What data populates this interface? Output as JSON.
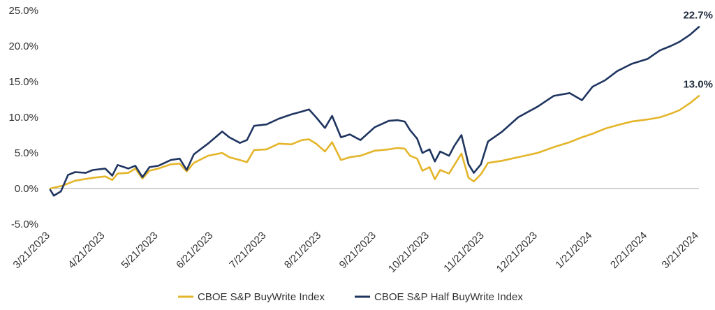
{
  "chart_data": {
    "type": "line",
    "title": "",
    "xlabel": "",
    "ylabel": "",
    "ylim": [
      -5.0,
      25.0
    ],
    "y_ticks": [
      "25.0%",
      "20.0%",
      "15.0%",
      "10.0%",
      "5.0%",
      "0.0%",
      "-5.0%"
    ],
    "x_ticks": [
      "3/21/2023",
      "4/21/2023",
      "5/21/2023",
      "6/21/2023",
      "7/21/2023",
      "8/21/2023",
      "9/21/2023",
      "10/21/2023",
      "11/21/2023",
      "12/21/2023",
      "1/21/2024",
      "2/21/2024",
      "3/21/2024"
    ],
    "grid": false,
    "legend_position": "bottom",
    "series": [
      {
        "name": "CBOE S&P BuyWrite Index",
        "color": "#e4b52a",
        "end_label": "13.0%",
        "points": [
          [
            "3/21/2023",
            0.0
          ],
          [
            "3/28/2023",
            0.4
          ],
          [
            "4/4/2023",
            1.1
          ],
          [
            "4/14/2023",
            1.5
          ],
          [
            "4/21/2023",
            1.7
          ],
          [
            "4/25/2023",
            1.2
          ],
          [
            "4/28/2023",
            2.1
          ],
          [
            "5/4/2023",
            2.2
          ],
          [
            "5/8/2023",
            2.8
          ],
          [
            "5/12/2023",
            1.4
          ],
          [
            "5/16/2023",
            2.5
          ],
          [
            "5/21/2023",
            2.8
          ],
          [
            "5/28/2023",
            3.4
          ],
          [
            "6/2/2023",
            3.5
          ],
          [
            "6/6/2023",
            2.4
          ],
          [
            "6/10/2023",
            3.6
          ],
          [
            "6/18/2023",
            4.6
          ],
          [
            "6/26/2023",
            5.0
          ],
          [
            "6/30/2023",
            4.4
          ],
          [
            "7/6/2023",
            4.0
          ],
          [
            "7/10/2023",
            3.7
          ],
          [
            "7/14/2023",
            5.4
          ],
          [
            "7/21/2023",
            5.5
          ],
          [
            "7/28/2023",
            6.3
          ],
          [
            "8/4/2023",
            6.2
          ],
          [
            "8/10/2023",
            6.8
          ],
          [
            "8/14/2023",
            6.9
          ],
          [
            "8/18/2023",
            6.3
          ],
          [
            "8/23/2023",
            5.2
          ],
          [
            "8/27/2023",
            6.5
          ],
          [
            "9/1/2023",
            4.0
          ],
          [
            "9/6/2023",
            4.4
          ],
          [
            "9/12/2023",
            4.6
          ],
          [
            "9/20/2023",
            5.3
          ],
          [
            "9/28/2023",
            5.5
          ],
          [
            "10/3/2023",
            5.7
          ],
          [
            "10/7/2023",
            5.6
          ],
          [
            "10/10/2023",
            4.6
          ],
          [
            "10/14/2023",
            4.2
          ],
          [
            "10/17/2023",
            2.5
          ],
          [
            "10/21/2023",
            3.0
          ],
          [
            "10/24/2023",
            1.3
          ],
          [
            "10/27/2023",
            2.6
          ],
          [
            "11/1/2023",
            2.1
          ],
          [
            "11/4/2023",
            3.3
          ],
          [
            "11/8/2023",
            4.9
          ],
          [
            "11/12/2023",
            1.5
          ],
          [
            "11/15/2023",
            1.0
          ],
          [
            "11/19/2023",
            2.0
          ],
          [
            "11/23/2023",
            3.6
          ],
          [
            "12/1/2023",
            3.9
          ],
          [
            "12/10/2023",
            4.4
          ],
          [
            "12/21/2023",
            5.0
          ],
          [
            "12/30/2023",
            5.8
          ],
          [
            "1/8/2024",
            6.5
          ],
          [
            "1/15/2024",
            7.2
          ],
          [
            "1/21/2024",
            7.7
          ],
          [
            "1/28/2024",
            8.4
          ],
          [
            "2/4/2024",
            8.9
          ],
          [
            "2/12/2024",
            9.4
          ],
          [
            "2/21/2024",
            9.7
          ],
          [
            "2/28/2024",
            10.0
          ],
          [
            "3/5/2024",
            10.5
          ],
          [
            "3/10/2024",
            11.0
          ],
          [
            "3/16/2024",
            12.0
          ],
          [
            "3/21/2024",
            13.0
          ]
        ]
      },
      {
        "name": "CBOE S&P Half BuyWrite Index",
        "color": "#1f3560",
        "end_label": "22.7%",
        "points": [
          [
            "3/21/2023",
            -0.2
          ],
          [
            "3/23/2023",
            -1.0
          ],
          [
            "3/27/2023",
            -0.4
          ],
          [
            "3/31/2023",
            1.9
          ],
          [
            "4/4/2023",
            2.3
          ],
          [
            "4/10/2023",
            2.2
          ],
          [
            "4/14/2023",
            2.6
          ],
          [
            "4/21/2023",
            2.8
          ],
          [
            "4/25/2023",
            1.8
          ],
          [
            "4/28/2023",
            3.3
          ],
          [
            "5/4/2023",
            2.8
          ],
          [
            "5/8/2023",
            3.2
          ],
          [
            "5/12/2023",
            1.6
          ],
          [
            "5/16/2023",
            3.0
          ],
          [
            "5/21/2023",
            3.2
          ],
          [
            "5/28/2023",
            4.0
          ],
          [
            "6/2/2023",
            4.2
          ],
          [
            "6/6/2023",
            2.6
          ],
          [
            "6/10/2023",
            4.8
          ],
          [
            "6/18/2023",
            6.3
          ],
          [
            "6/26/2023",
            8.0
          ],
          [
            "6/30/2023",
            7.2
          ],
          [
            "7/6/2023",
            6.4
          ],
          [
            "7/10/2023",
            6.8
          ],
          [
            "7/14/2023",
            8.8
          ],
          [
            "7/21/2023",
            9.0
          ],
          [
            "7/28/2023",
            9.8
          ],
          [
            "8/4/2023",
            10.4
          ],
          [
            "8/10/2023",
            10.8
          ],
          [
            "8/14/2023",
            11.1
          ],
          [
            "8/18/2023",
            10.0
          ],
          [
            "8/23/2023",
            8.5
          ],
          [
            "8/27/2023",
            10.2
          ],
          [
            "9/1/2023",
            7.2
          ],
          [
            "9/6/2023",
            7.6
          ],
          [
            "9/12/2023",
            6.8
          ],
          [
            "9/20/2023",
            8.6
          ],
          [
            "9/28/2023",
            9.5
          ],
          [
            "10/3/2023",
            9.6
          ],
          [
            "10/7/2023",
            9.4
          ],
          [
            "10/10/2023",
            8.2
          ],
          [
            "10/14/2023",
            7.0
          ],
          [
            "10/17/2023",
            5.0
          ],
          [
            "10/21/2023",
            5.5
          ],
          [
            "10/24/2023",
            3.8
          ],
          [
            "10/27/2023",
            5.2
          ],
          [
            "11/1/2023",
            4.6
          ],
          [
            "11/4/2023",
            6.0
          ],
          [
            "11/8/2023",
            7.5
          ],
          [
            "11/12/2023",
            3.4
          ],
          [
            "11/15/2023",
            2.2
          ],
          [
            "11/19/2023",
            3.4
          ],
          [
            "11/23/2023",
            6.6
          ],
          [
            "12/1/2023",
            8.0
          ],
          [
            "12/10/2023",
            10.0
          ],
          [
            "12/21/2023",
            11.5
          ],
          [
            "12/30/2023",
            13.0
          ],
          [
            "1/8/2024",
            13.4
          ],
          [
            "1/15/2024",
            12.4
          ],
          [
            "1/21/2024",
            14.3
          ],
          [
            "1/28/2024",
            15.2
          ],
          [
            "2/4/2024",
            16.5
          ],
          [
            "2/12/2024",
            17.5
          ],
          [
            "2/21/2024",
            18.2
          ],
          [
            "2/28/2024",
            19.4
          ],
          [
            "3/5/2024",
            20.0
          ],
          [
            "3/10/2024",
            20.6
          ],
          [
            "3/16/2024",
            21.6
          ],
          [
            "3/21/2024",
            22.7
          ]
        ]
      }
    ]
  }
}
